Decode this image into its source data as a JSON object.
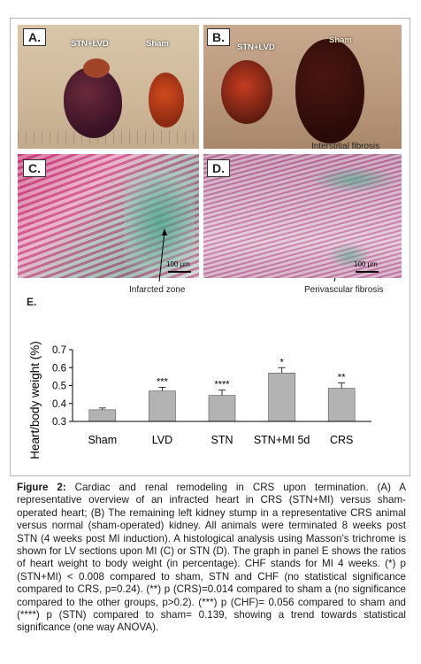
{
  "panels": {
    "a": {
      "label": "A.",
      "left_text": "STN+LVD",
      "right_text": "Sham"
    },
    "b": {
      "label": "B.",
      "left_text": "STN+LVD",
      "right_text": "Sham"
    },
    "c": {
      "label": "C.",
      "scale": "100 µm",
      "annotation": "Infarcted zone"
    },
    "d": {
      "label": "D.",
      "scale": "100 µm",
      "annotation_top": "Interstitial fibrosis",
      "annotation_bottom": "Perivascular fibrosis"
    },
    "e": {
      "label": "E."
    }
  },
  "chart_data": {
    "type": "bar",
    "ylabel": "Heart/body weight (%)",
    "categories": [
      "Sham",
      "LVD",
      "STN",
      "STN+MI 5d",
      "CRS"
    ],
    "values": [
      0.365,
      0.47,
      0.445,
      0.57,
      0.485
    ],
    "errors": [
      0.01,
      0.02,
      0.03,
      0.03,
      0.03
    ],
    "significance": [
      "",
      "***",
      "****",
      "*",
      "**"
    ],
    "ylim": [
      0.3,
      0.7
    ],
    "yticks": [
      "0.3",
      "0.4",
      "0.5",
      "0.6",
      "0.7"
    ],
    "bar_color": "#b3b3b3"
  },
  "caption": {
    "figure_label": "Figure 2:",
    "text": " Cardiac and renal remodeling in CRS upon termination. (A) A representative overview of an infracted heart in CRS (STN+MI) versus sham-operated heart; (B) The remaining left kidney stump in a representative CRS animal versus normal (sham-operated) kidney. All animals were terminated 8 weeks post STN (4 weeks post MI induction). A histological analysis using Masson’s trichrome is shown for LV sections upon MI (C) or STN (D). The graph in panel E shows the ratios of heart weight to body weight (in percentage). CHF stands for MI 4 weeks. (*) p (STN+MI) < 0.008 compared to sham, STN and CHF (no statistical significance compared to CRS, p=0.24). (**) p (CRS)=0.014 compared to sham a (no significance compared to the other groups, p>0.2). (***) p (CHF)= 0.056 compared to sham and (****) p (STN) compared to sham= 0.139, showing a trend towards statistical significance (one way ANOVA)."
  }
}
